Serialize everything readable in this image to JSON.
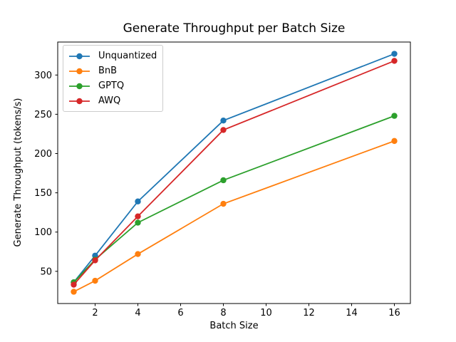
{
  "chart_data": {
    "type": "line",
    "title": "Generate Throughput per Batch Size",
    "xlabel": "Batch Size",
    "ylabel": "Generate Throughput (tokens/s)",
    "x": [
      1,
      2,
      4,
      8,
      16
    ],
    "series": [
      {
        "name": "Unquantized",
        "color": "#1f77b4",
        "values": [
          36,
          70,
          139,
          242,
          327
        ]
      },
      {
        "name": "BnB",
        "color": "#ff7f0e",
        "values": [
          24,
          38,
          72,
          136,
          216
        ]
      },
      {
        "name": "GPTQ",
        "color": "#2ca02c",
        "values": [
          36,
          65,
          112,
          166,
          248
        ]
      },
      {
        "name": "AWQ",
        "color": "#d62728",
        "values": [
          33,
          64,
          120,
          230,
          318
        ]
      }
    ],
    "x_ticks": [
      2,
      4,
      6,
      8,
      10,
      12,
      14,
      16
    ],
    "y_ticks": [
      50,
      100,
      150,
      200,
      250,
      300
    ],
    "xlim": [
      0.25,
      16.75
    ],
    "ylim": [
      9,
      342
    ],
    "grid": false,
    "legend_position": "upper-left",
    "marker": "circle",
    "axis_color": "#000000",
    "background_color": "#ffffff"
  }
}
